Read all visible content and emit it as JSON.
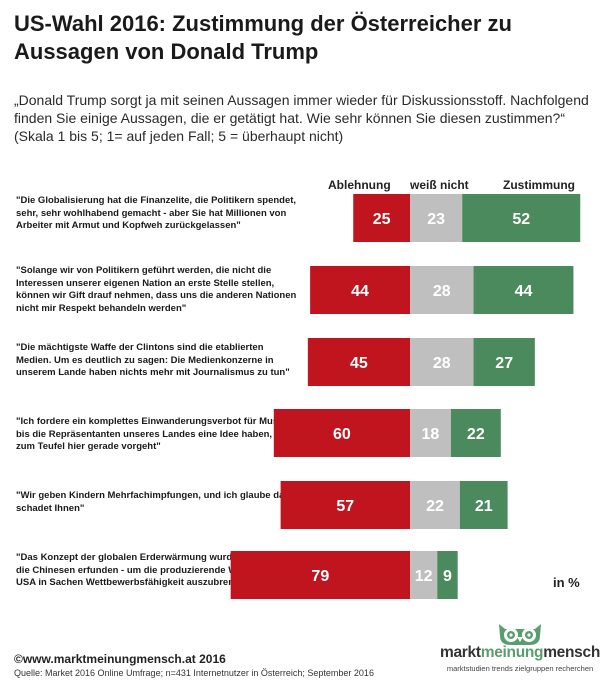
{
  "title": "US-Wahl 2016: Zustimmung der Österreicher zu Aussagen von Donald Trump",
  "subtitle": "„Donald Trump sorgt ja mit seinen Aussagen immer wieder für Diskussionsstoff. Nachfolgend finden Sie einige Aussagen, die er getätigt hat. Wie sehr können Sie diesen zustimmen?“   (Skala 1 bis 5; 1= auf jeden Fall; 5 = überhaupt  nicht)",
  "unit_label": "in %",
  "footer": {
    "copyright": "©www.marktmeinungmensch.at  2016",
    "source": "Quelle: Market 2016 Online Umfrage; n=431 Internetnutzer in Österreich; September 2016"
  },
  "logo": {
    "part1": "markt",
    "part2": "meinung",
    "part3": "mensch",
    "tagline": "marktstudien trends zielgruppen recherchen"
  },
  "colors": {
    "ablehnung": "#c0141f",
    "weiss_nicht": "#bfbfbf",
    "zustimmung": "#4a8a5c",
    "owl": "#5a9e6f"
  },
  "chart_data": {
    "type": "bar",
    "stacked": true,
    "orientation": "horizontal",
    "series": [
      {
        "name": "Ablehnung",
        "values": [
          25,
          44,
          45,
          60,
          57,
          79
        ]
      },
      {
        "name": "weiß nicht",
        "values": [
          23,
          28,
          28,
          18,
          22,
          12
        ]
      },
      {
        "name": "Zustimmung",
        "values": [
          52,
          44,
          27,
          22,
          21,
          9
        ]
      }
    ],
    "categories": [
      "\"Die Globalisierung hat die Finanzelite, die Politikern spendet, sehr, sehr wohlhabend gemacht - aber Sie hat Millionen von Arbeiter mit Armut und Kopfweh zurückgelassen\"",
      "\"Solange wir von Politikern geführt werden, die nicht die Interessen unserer eigenen Nation an erste Stelle stellen, können wir Gift drauf nehmen, dass uns die anderen Nationen nicht mir Respekt behandeln werden\"",
      "\"Die mächtigste Waffe der Clintons sind die etablierten Medien. Um es deutlich zu sagen: Die Medienkonzerne in unserem Lande haben nichts mehr mit Journalismus zu tun\"",
      "\"Ich fordere ein komplettes Einwanderungsverbot für Muslime, bis die Repräsentanten unseres Landes eine Idee haben, was zum Teufel hier gerade vorgeht\"",
      "\"Wir geben Kindern Mehrfachimpfungen, und ich glaube das schadet Ihnen\"",
      "\"Das Konzept der globalen Erderwärmung wurde von und für die Chinesen erfunden - um die produzierende Wirtschaft der USA in Sachen Wettbewerbsfähigkeit auszubremsen\""
    ]
  }
}
